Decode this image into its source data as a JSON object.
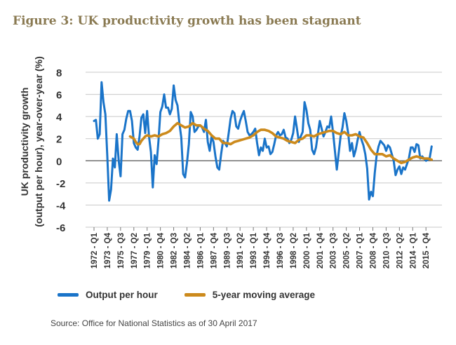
{
  "title": "Figure 3: UK productivity growth has been stagnant",
  "source": "Source: Office for National Statistics as of 30 April 2017",
  "chart_data": {
    "type": "line",
    "ylabel_line1": "UK productivity growth",
    "ylabel_line2": "(output per hour), year-over-year (%)",
    "ylim": [
      -6,
      8
    ],
    "yticks": [
      "8",
      "6",
      "4",
      "2",
      "0",
      "-2",
      "-4",
      "-6"
    ],
    "x_start": 1972.0,
    "x_end": 2016.75,
    "x_ticks": [
      {
        "t": 1972.0,
        "label": "1972 - Q1"
      },
      {
        "t": 1973.75,
        "label": "1973 - Q4"
      },
      {
        "t": 1975.5,
        "label": "1975 - Q3"
      },
      {
        "t": 1977.25,
        "label": "1977 - Q2"
      },
      {
        "t": 1979.0,
        "label": "1979 - Q1"
      },
      {
        "t": 1980.75,
        "label": "1980 - Q4"
      },
      {
        "t": 1982.5,
        "label": "1982 - Q3"
      },
      {
        "t": 1984.25,
        "label": "1984 - Q2"
      },
      {
        "t": 1986.0,
        "label": "1986 - Q1"
      },
      {
        "t": 1987.75,
        "label": "1987 - Q4"
      },
      {
        "t": 1989.5,
        "label": "1989 - Q3"
      },
      {
        "t": 1991.25,
        "label": "1991 - Q2"
      },
      {
        "t": 1993.0,
        "label": "1993 - Q1"
      },
      {
        "t": 1994.75,
        "label": "1994 - Q4"
      },
      {
        "t": 1996.5,
        "label": "1996 - Q3"
      },
      {
        "t": 1998.25,
        "label": "1998 - Q2"
      },
      {
        "t": 2000.0,
        "label": "2000 - Q1"
      },
      {
        "t": 2001.75,
        "label": "2001 - Q4"
      },
      {
        "t": 2003.5,
        "label": "2003 - Q3"
      },
      {
        "t": 2005.25,
        "label": "2005 - Q2"
      },
      {
        "t": 2007.0,
        "label": "2007 - Q1"
      },
      {
        "t": 2008.75,
        "label": "2008 - Q4"
      },
      {
        "t": 2010.5,
        "label": "2010 - Q3"
      },
      {
        "t": 2012.25,
        "label": "2012 - Q2"
      },
      {
        "t": 2014.0,
        "label": "2014 - Q1"
      },
      {
        "t": 2015.75,
        "label": "2015 - Q4"
      }
    ],
    "grid": "horizontal",
    "legend_position": "bottom",
    "series": [
      {
        "name": "Output per hour",
        "color": "#1a74c9",
        "points": [
          [
            1972.0,
            3.6
          ],
          [
            1972.25,
            3.7
          ],
          [
            1972.5,
            2.0
          ],
          [
            1972.75,
            2.4
          ],
          [
            1973.0,
            7.1
          ],
          [
            1973.25,
            5.3
          ],
          [
            1973.5,
            4.2
          ],
          [
            1973.75,
            0.5
          ],
          [
            1974.0,
            -3.6
          ],
          [
            1974.25,
            -2.6
          ],
          [
            1974.5,
            0.2
          ],
          [
            1974.75,
            -0.6
          ],
          [
            1975.0,
            2.4
          ],
          [
            1975.25,
            0.0
          ],
          [
            1975.5,
            -1.4
          ],
          [
            1975.75,
            2.4
          ],
          [
            1976.0,
            2.8
          ],
          [
            1976.25,
            3.8
          ],
          [
            1976.5,
            4.5
          ],
          [
            1976.75,
            4.5
          ],
          [
            1977.0,
            3.6
          ],
          [
            1977.25,
            1.6
          ],
          [
            1977.5,
            1.2
          ],
          [
            1977.75,
            1.0
          ],
          [
            1978.0,
            2.2
          ],
          [
            1978.25,
            3.9
          ],
          [
            1978.5,
            4.2
          ],
          [
            1978.75,
            2.5
          ],
          [
            1979.0,
            4.5
          ],
          [
            1979.25,
            2.2
          ],
          [
            1979.5,
            0.8
          ],
          [
            1979.75,
            -2.4
          ],
          [
            1980.0,
            0.5
          ],
          [
            1980.25,
            -0.3
          ],
          [
            1980.5,
            1.8
          ],
          [
            1980.75,
            4.4
          ],
          [
            1981.0,
            4.9
          ],
          [
            1981.25,
            6.0
          ],
          [
            1981.5,
            4.8
          ],
          [
            1981.75,
            4.8
          ],
          [
            1982.0,
            4.2
          ],
          [
            1982.25,
            4.7
          ],
          [
            1982.5,
            6.8
          ],
          [
            1982.75,
            5.5
          ],
          [
            1983.0,
            5.0
          ],
          [
            1983.25,
            3.4
          ],
          [
            1983.5,
            2.1
          ],
          [
            1983.75,
            -1.2
          ],
          [
            1984.0,
            -1.5
          ],
          [
            1984.25,
            -0.2
          ],
          [
            1984.5,
            1.5
          ],
          [
            1984.75,
            4.4
          ],
          [
            1985.0,
            4.0
          ],
          [
            1985.25,
            2.6
          ],
          [
            1985.5,
            2.8
          ],
          [
            1985.75,
            3.1
          ],
          [
            1986.0,
            3.2
          ],
          [
            1986.25,
            3.0
          ],
          [
            1986.5,
            2.6
          ],
          [
            1986.75,
            3.7
          ],
          [
            1987.0,
            1.7
          ],
          [
            1987.25,
            0.9
          ],
          [
            1987.5,
            2.2
          ],
          [
            1987.75,
            1.7
          ],
          [
            1988.0,
            0.4
          ],
          [
            1988.25,
            -0.6
          ],
          [
            1988.5,
            -0.8
          ],
          [
            1988.75,
            0.6
          ],
          [
            1989.0,
            1.8
          ],
          [
            1989.25,
            1.6
          ],
          [
            1989.5,
            1.3
          ],
          [
            1989.75,
            2.5
          ],
          [
            1990.0,
            3.8
          ],
          [
            1990.25,
            4.5
          ],
          [
            1990.5,
            4.3
          ],
          [
            1990.75,
            3.1
          ],
          [
            1991.0,
            2.9
          ],
          [
            1991.25,
            3.6
          ],
          [
            1991.5,
            4.1
          ],
          [
            1991.75,
            4.5
          ],
          [
            1992.0,
            3.6
          ],
          [
            1992.25,
            2.6
          ],
          [
            1992.5,
            2.3
          ],
          [
            1992.75,
            2.4
          ],
          [
            1993.0,
            2.6
          ],
          [
            1993.25,
            2.9
          ],
          [
            1993.5,
            1.6
          ],
          [
            1993.75,
            0.5
          ],
          [
            1994.0,
            1.2
          ],
          [
            1994.25,
            0.9
          ],
          [
            1994.5,
            2.0
          ],
          [
            1994.75,
            1.2
          ],
          [
            1995.0,
            1.3
          ],
          [
            1995.25,
            0.6
          ],
          [
            1995.5,
            0.8
          ],
          [
            1995.75,
            1.5
          ],
          [
            1996.0,
            2.3
          ],
          [
            1996.25,
            2.6
          ],
          [
            1996.5,
            2.3
          ],
          [
            1996.75,
            2.4
          ],
          [
            1997.0,
            2.8
          ],
          [
            1997.25,
            2.1
          ],
          [
            1997.5,
            2.0
          ],
          [
            1997.75,
            1.6
          ],
          [
            1998.0,
            1.9
          ],
          [
            1998.25,
            2.5
          ],
          [
            1998.5,
            4.0
          ],
          [
            1998.75,
            2.9
          ],
          [
            1999.0,
            1.7
          ],
          [
            1999.25,
            2.2
          ],
          [
            1999.5,
            2.6
          ],
          [
            1999.75,
            5.3
          ],
          [
            2000.0,
            4.6
          ],
          [
            2000.25,
            3.4
          ],
          [
            2000.5,
            2.8
          ],
          [
            2000.75,
            1.0
          ],
          [
            2001.0,
            0.6
          ],
          [
            2001.25,
            1.2
          ],
          [
            2001.5,
            2.4
          ],
          [
            2001.75,
            3.6
          ],
          [
            2002.0,
            2.9
          ],
          [
            2002.25,
            2.2
          ],
          [
            2002.5,
            2.6
          ],
          [
            2002.75,
            3.1
          ],
          [
            2003.0,
            3.0
          ],
          [
            2003.25,
            4.0
          ],
          [
            2003.5,
            2.6
          ],
          [
            2003.75,
            0.9
          ],
          [
            2004.0,
            -0.8
          ],
          [
            2004.25,
            0.7
          ],
          [
            2004.5,
            2.2
          ],
          [
            2004.75,
            3.0
          ],
          [
            2005.0,
            4.3
          ],
          [
            2005.25,
            3.6
          ],
          [
            2005.5,
            2.5
          ],
          [
            2005.75,
            0.9
          ],
          [
            2006.0,
            1.6
          ],
          [
            2006.25,
            0.4
          ],
          [
            2006.5,
            1.0
          ],
          [
            2006.75,
            1.9
          ],
          [
            2007.0,
            2.6
          ],
          [
            2007.25,
            1.9
          ],
          [
            2007.5,
            1.4
          ],
          [
            2007.75,
            0.6
          ],
          [
            2008.0,
            -0.7
          ],
          [
            2008.25,
            -3.5
          ],
          [
            2008.5,
            -2.8
          ],
          [
            2008.75,
            -3.2
          ],
          [
            2009.0,
            -1.1
          ],
          [
            2009.25,
            0.5
          ],
          [
            2009.5,
            1.3
          ],
          [
            2009.75,
            1.8
          ],
          [
            2010.0,
            1.6
          ],
          [
            2010.25,
            1.4
          ],
          [
            2010.5,
            0.9
          ],
          [
            2010.75,
            1.4
          ],
          [
            2011.0,
            1.2
          ],
          [
            2011.25,
            0.6
          ],
          [
            2011.5,
            0.0
          ],
          [
            2011.75,
            -1.3
          ],
          [
            2012.0,
            -0.8
          ],
          [
            2012.25,
            -0.5
          ],
          [
            2012.5,
            -1.2
          ],
          [
            2012.75,
            -0.6
          ],
          [
            2013.0,
            -0.8
          ],
          [
            2013.25,
            -0.3
          ],
          [
            2013.5,
            0.2
          ],
          [
            2013.75,
            1.2
          ],
          [
            2014.0,
            1.2
          ],
          [
            2014.25,
            0.8
          ],
          [
            2014.5,
            1.5
          ],
          [
            2014.75,
            1.4
          ],
          [
            2015.0,
            0.2
          ],
          [
            2015.25,
            0.4
          ],
          [
            2015.5,
            0.2
          ],
          [
            2015.75,
            0.0
          ],
          [
            2016.0,
            0.1
          ],
          [
            2016.25,
            0.3
          ],
          [
            2016.5,
            1.3
          ]
        ]
      },
      {
        "name": "5-year moving average",
        "color": "#cc8a1c",
        "points": [
          [
            1976.75,
            2.2
          ],
          [
            1977.0,
            2.1
          ],
          [
            1977.25,
            2.0
          ],
          [
            1977.5,
            1.7
          ],
          [
            1977.75,
            1.5
          ],
          [
            1978.0,
            1.5
          ],
          [
            1978.25,
            1.8
          ],
          [
            1978.5,
            2.0
          ],
          [
            1978.75,
            2.2
          ],
          [
            1979.0,
            2.3
          ],
          [
            1979.5,
            2.2
          ],
          [
            1980.0,
            2.3
          ],
          [
            1980.5,
            2.2
          ],
          [
            1981.0,
            2.4
          ],
          [
            1981.5,
            2.5
          ],
          [
            1982.0,
            2.7
          ],
          [
            1982.5,
            3.1
          ],
          [
            1983.0,
            3.4
          ],
          [
            1983.5,
            3.2
          ],
          [
            1984.0,
            3.0
          ],
          [
            1984.5,
            3.1
          ],
          [
            1985.0,
            3.4
          ],
          [
            1985.5,
            3.2
          ],
          [
            1986.0,
            3.2
          ],
          [
            1986.5,
            2.9
          ],
          [
            1987.0,
            2.7
          ],
          [
            1987.5,
            2.3
          ],
          [
            1988.0,
            2.0
          ],
          [
            1988.5,
            2.0
          ],
          [
            1989.0,
            1.6
          ],
          [
            1989.5,
            1.6
          ],
          [
            1990.0,
            1.5
          ],
          [
            1990.5,
            1.7
          ],
          [
            1991.0,
            1.8
          ],
          [
            1991.5,
            1.9
          ],
          [
            1992.0,
            2.0
          ],
          [
            1992.5,
            2.1
          ],
          [
            1993.0,
            2.3
          ],
          [
            1993.5,
            2.6
          ],
          [
            1994.0,
            2.8
          ],
          [
            1994.5,
            2.8
          ],
          [
            1995.0,
            2.7
          ],
          [
            1995.5,
            2.5
          ],
          [
            1996.0,
            2.2
          ],
          [
            1996.5,
            2.1
          ],
          [
            1997.0,
            2.0
          ],
          [
            1997.5,
            1.8
          ],
          [
            1998.0,
            1.7
          ],
          [
            1998.5,
            1.6
          ],
          [
            1999.0,
            1.9
          ],
          [
            1999.5,
            2.0
          ],
          [
            2000.0,
            2.3
          ],
          [
            2000.5,
            2.3
          ],
          [
            2001.0,
            2.2
          ],
          [
            2001.5,
            2.4
          ],
          [
            2002.0,
            2.5
          ],
          [
            2002.5,
            2.6
          ],
          [
            2003.0,
            2.7
          ],
          [
            2003.5,
            2.7
          ],
          [
            2004.0,
            2.5
          ],
          [
            2004.5,
            2.4
          ],
          [
            2005.0,
            2.6
          ],
          [
            2005.5,
            2.3
          ],
          [
            2006.0,
            2.3
          ],
          [
            2006.5,
            2.4
          ],
          [
            2007.0,
            2.2
          ],
          [
            2007.5,
            2.1
          ],
          [
            2008.0,
            1.6
          ],
          [
            2008.5,
            1.0
          ],
          [
            2009.0,
            0.6
          ],
          [
            2009.5,
            0.6
          ],
          [
            2010.0,
            0.6
          ],
          [
            2010.5,
            0.4
          ],
          [
            2011.0,
            0.5
          ],
          [
            2011.5,
            0.2
          ],
          [
            2012.0,
            0.0
          ],
          [
            2012.5,
            -0.2
          ],
          [
            2013.0,
            -0.1
          ],
          [
            2013.5,
            0.1
          ],
          [
            2014.0,
            0.3
          ],
          [
            2014.5,
            0.4
          ],
          [
            2015.0,
            0.3
          ],
          [
            2015.5,
            0.2
          ],
          [
            2016.0,
            0.2
          ],
          [
            2016.5,
            0.1
          ]
        ]
      }
    ]
  }
}
